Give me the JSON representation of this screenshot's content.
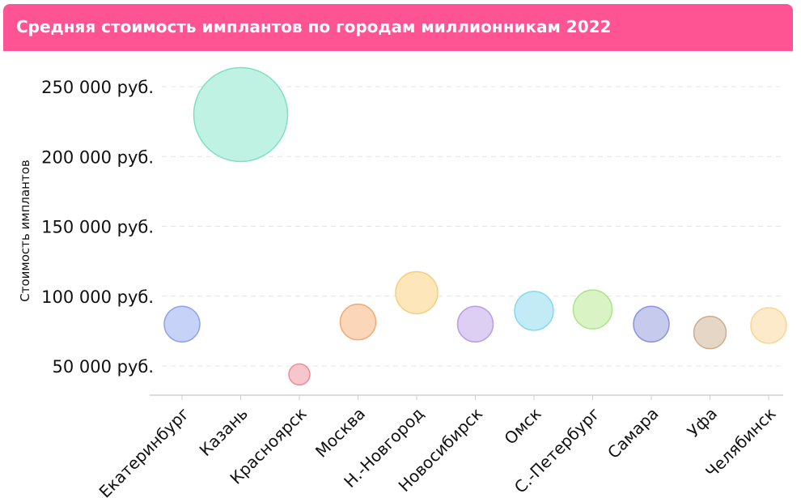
{
  "header": {
    "title": "Средняя стоимость имплантов по городам миллионникам 2022"
  },
  "chart_data": {
    "type": "scatter",
    "title": "Средняя стоимость имплантов по городам миллионникам 2022",
    "xlabel": "",
    "ylabel": "Стоимость имплантов",
    "ylim": [
      20000,
      260000
    ],
    "yticks": [
      {
        "value": 50000,
        "label": "50 000 руб."
      },
      {
        "value": 100000,
        "label": "100 000 руб."
      },
      {
        "value": 150000,
        "label": "150 000 руб."
      },
      {
        "value": 200000,
        "label": "200 000 руб."
      },
      {
        "value": 250000,
        "label": "250 000 руб."
      }
    ],
    "grid": true,
    "categories": [
      "Екатеринбург",
      "Казань",
      "Красноярск",
      "Москва",
      "Н.-Новгород",
      "Новосибирск",
      "Омск",
      "С.-Петербург",
      "Самара",
      "Уфа",
      "Челябинск"
    ],
    "values": [
      80000,
      230000,
      44000,
      81500,
      102500,
      80000,
      89500,
      90500,
      80000,
      74000,
      79000
    ],
    "bubble_size": [
      22,
      58,
      13,
      22,
      26,
      22,
      24,
      24,
      22,
      20,
      22
    ],
    "fill_colors": [
      "#c6d2f7",
      "#bff2e3",
      "#f7c6cd",
      "#fbd6b9",
      "#fde6b9",
      "#dccff3",
      "#c2ebf6",
      "#d9f3c4",
      "#c6cbee",
      "#e6d6c5",
      "#fdeacb"
    ],
    "stroke_colors": [
      "#8fa4ec",
      "#7ee0c0",
      "#ee8c9a",
      "#f2a97a",
      "#f7ce7c",
      "#b8a0e6",
      "#86d8ee",
      "#abe38c",
      "#8c95dc",
      "#cdad8b",
      "#fad596"
    ]
  }
}
